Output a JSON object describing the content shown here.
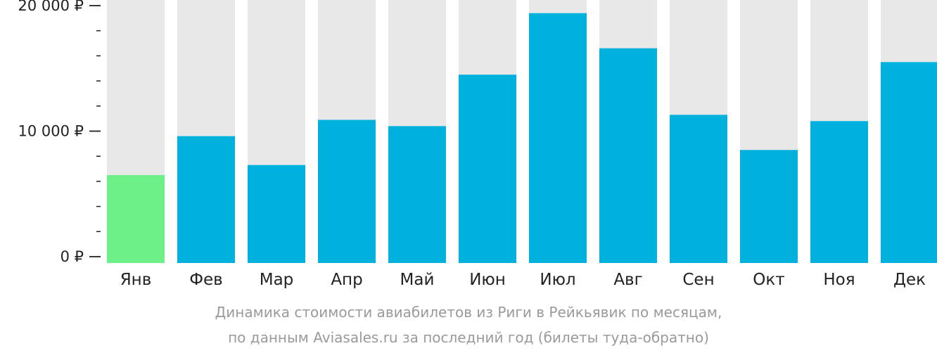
{
  "chart_data": {
    "type": "bar",
    "categories": [
      "Янв",
      "Фев",
      "Мар",
      "Апр",
      "Май",
      "Июн",
      "Июл",
      "Авг",
      "Сен",
      "Окт",
      "Ноя",
      "Дек"
    ],
    "values": [
      6500,
      9600,
      7300,
      10900,
      10400,
      14500,
      19400,
      16600,
      11300,
      8500,
      10800,
      15500
    ],
    "ylim": [
      0,
      20000
    ],
    "y_ticks": [
      {
        "value": 0,
        "label": "0 ₽"
      },
      {
        "value": 10000,
        "label": "10 000 ₽"
      },
      {
        "value": 20000,
        "label": "20 000 ₽"
      }
    ],
    "y_minor_tick_step": 2000,
    "highlight_index": 0,
    "colors": {
      "bar": "#00b0dd",
      "highlight_bar": "#6df087",
      "background_bar": "#e8e8e8",
      "axis_text": "#222222",
      "tick": "#222222"
    },
    "caption": [
      "Динамика стоимости авиабилетов из Риги в Рейкьявик по месяцам,",
      "по данным Aviasales.ru за последний год (билеты туда-обратно)"
    ]
  }
}
